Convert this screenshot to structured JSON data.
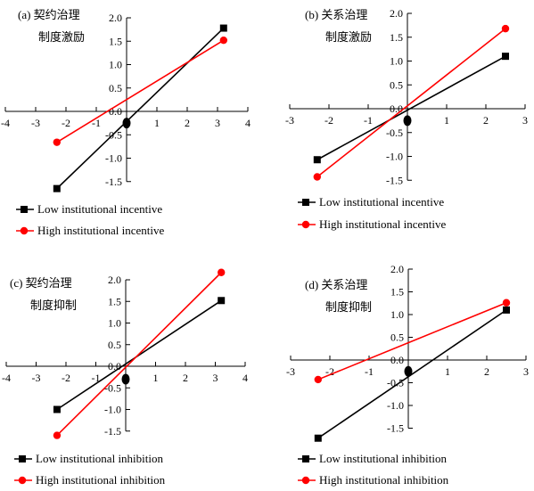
{
  "chart_data": [
    {
      "type": "line",
      "panel": "(a)",
      "title_line1": "契约治理",
      "title_line2": "制度激励",
      "xlim": [
        -4,
        4
      ],
      "ylim": [
        -1.5,
        2.0
      ],
      "x_ticks": [
        -4,
        -3,
        -2,
        -1,
        0,
        1,
        2,
        3,
        4
      ],
      "y_ticks": [
        -1.5,
        -1.0,
        -0.5,
        0.0,
        0.5,
        1.0,
        1.5,
        2.0
      ],
      "origin_marker": {
        "x": 0,
        "y": -0.25
      },
      "series": [
        {
          "name": "Low institutional incentive",
          "color": "#000000",
          "marker": "square",
          "points": [
            [
              -2.3,
              -1.65
            ],
            [
              3.2,
              1.78
            ]
          ]
        },
        {
          "name": "High institutional incentive",
          "color": "#ff0000",
          "marker": "circle",
          "points": [
            [
              -2.3,
              -0.66
            ],
            [
              3.2,
              1.52
            ]
          ]
        }
      ]
    },
    {
      "type": "line",
      "panel": "(b)",
      "title_line1": "关系治理",
      "title_line2": "制度激励",
      "xlim": [
        -3,
        3
      ],
      "ylim": [
        -1.5,
        2.0
      ],
      "x_ticks": [
        -3,
        -2,
        -1,
        0,
        1,
        2,
        3
      ],
      "y_ticks": [
        -1.5,
        -1.0,
        -0.5,
        0.0,
        0.5,
        1.0,
        1.5,
        2.0
      ],
      "origin_marker": {
        "x": 0,
        "y": -0.25
      },
      "series": [
        {
          "name": "Low institutional incentive",
          "color": "#000000",
          "marker": "square",
          "points": [
            [
              -2.3,
              -1.07
            ],
            [
              2.5,
              1.1
            ]
          ]
        },
        {
          "name": "High institutional incentive",
          "color": "#ff0000",
          "marker": "circle",
          "points": [
            [
              -2.3,
              -1.43
            ],
            [
              2.5,
              1.68
            ]
          ]
        }
      ]
    },
    {
      "type": "line",
      "panel": "(c)",
      "title_line1": "契约治理",
      "title_line2": "制度抑制",
      "xlim": [
        -4,
        4
      ],
      "ylim": [
        -1.5,
        2.0
      ],
      "x_ticks": [
        -4,
        -3,
        -2,
        -1,
        0,
        1,
        2,
        3,
        4
      ],
      "y_ticks": [
        -1.5,
        -1.0,
        -0.5,
        0.0,
        0.5,
        1.0,
        1.5,
        2.0
      ],
      "origin_marker": {
        "x": 0,
        "y": -0.3
      },
      "series": [
        {
          "name": "Low institutional inhibition",
          "color": "#000000",
          "marker": "square",
          "points": [
            [
              -2.3,
              -1.0
            ],
            [
              3.2,
              1.52
            ]
          ]
        },
        {
          "name": "High institutional inhibition",
          "color": "#ff0000",
          "marker": "circle",
          "points": [
            [
              -2.3,
              -1.6
            ],
            [
              3.2,
              2.17
            ]
          ]
        }
      ]
    },
    {
      "type": "line",
      "panel": "(d)",
      "title_line1": "关系治理",
      "title_line2": "制度抑制",
      "xlim": [
        -3,
        3
      ],
      "ylim": [
        -1.5,
        2.0
      ],
      "x_ticks": [
        -3,
        -2,
        -1,
        0,
        1,
        2,
        3
      ],
      "y_ticks": [
        -1.5,
        -1.0,
        -0.5,
        0.0,
        0.5,
        1.0,
        1.5,
        2.0
      ],
      "origin_marker": {
        "x": 0,
        "y": -0.25
      },
      "series": [
        {
          "name": "Low institutional inhibition",
          "color": "#000000",
          "marker": "square",
          "points": [
            [
              -2.3,
              -1.72
            ],
            [
              2.5,
              1.1
            ]
          ]
        },
        {
          "name": "High institutional inhibition",
          "color": "#ff0000",
          "marker": "circle",
          "points": [
            [
              -2.3,
              -0.43
            ],
            [
              2.5,
              1.26
            ]
          ]
        }
      ]
    }
  ]
}
